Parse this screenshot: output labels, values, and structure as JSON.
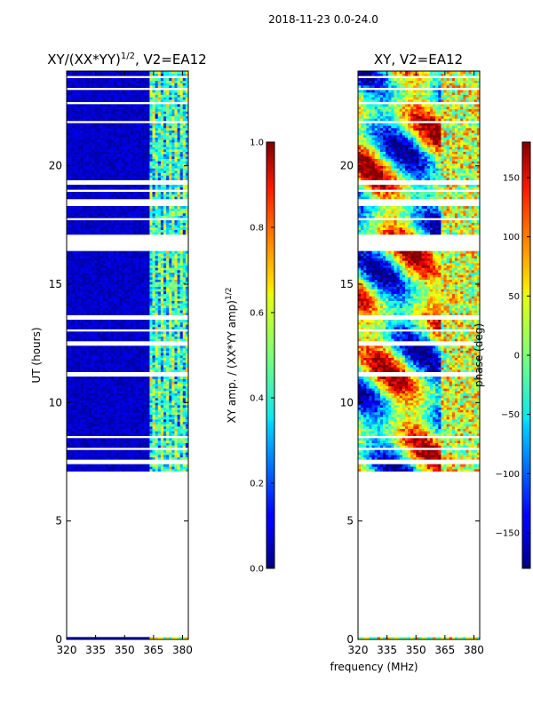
{
  "suptitle": "2018-11-23 0.0-24.0",
  "chart_data": [
    {
      "type": "heatmap",
      "title_main": "XY/(XX*YY)",
      "title_sup": "1/2",
      "title_tail": ", V2=EA12",
      "ylabel": "UT (hours)",
      "xlabel": "",
      "xlim": [
        320,
        383
      ],
      "ylim": [
        0,
        24
      ],
      "xticks": [
        320,
        335,
        350,
        365,
        380
      ],
      "yticks": [
        0,
        5,
        10,
        15,
        20
      ],
      "colorbar": {
        "label_main": "XY amp. / (XX*YY amp)",
        "label_sup": "1/2",
        "range": [
          0.0,
          1.0
        ],
        "ticks": [
          "0.0",
          "0.2",
          "0.4",
          "0.6",
          "0.8",
          "1.0"
        ]
      }
    },
    {
      "type": "heatmap",
      "title": "XY, V2=EA12",
      "ylabel": "",
      "xlabel": "frequency (MHz)",
      "xlim": [
        320,
        383
      ],
      "ylim": [
        0,
        24
      ],
      "xticks": [
        320,
        335,
        350,
        365,
        380
      ],
      "yticks": [
        0,
        5,
        10,
        15,
        20
      ],
      "colorbar": {
        "label": "phase (deg)",
        "range": [
          -180,
          180
        ],
        "ticks": [
          "150",
          "100",
          "50",
          "0",
          "−50",
          "−100",
          "−150"
        ]
      }
    }
  ],
  "data_coverage": {
    "valid_hours": [
      7.1,
      24.0
    ],
    "gap_hours": [
      [
        23.7,
        23.8
      ],
      [
        23.2,
        23.3
      ],
      [
        22.6,
        22.7
      ],
      [
        21.8,
        21.9
      ],
      [
        19.2,
        19.4
      ],
      [
        18.9,
        19.0
      ],
      [
        18.3,
        18.6
      ],
      [
        17.7,
        17.8
      ],
      [
        16.4,
        17.1
      ],
      [
        13.5,
        13.7
      ],
      [
        13.0,
        13.1
      ],
      [
        12.4,
        12.6
      ],
      [
        11.1,
        11.3
      ],
      [
        8.5,
        8.6
      ],
      [
        8.0,
        8.1
      ],
      [
        7.4,
        7.6
      ]
    ],
    "rfi_band_mhz": [
      363,
      383
    ]
  }
}
